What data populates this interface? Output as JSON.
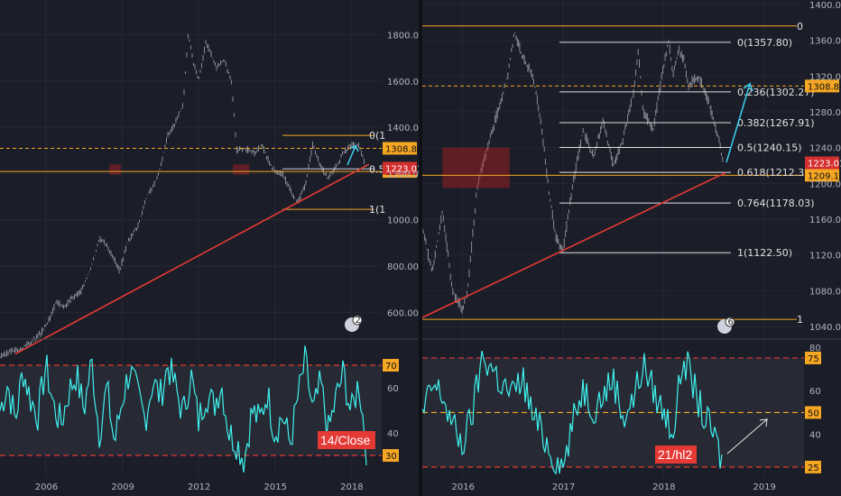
{
  "colors": {
    "background": "#1b1e28",
    "candle": "#8a8d96",
    "trendline": "#e53935",
    "orange": "#f5a623",
    "rsi_line": "#3ff0ee",
    "rsi_band": "#2a2d37",
    "rsi_dashed": "#e53935",
    "label_red": "#e53935",
    "arrow_cyan": "#3ad0f0"
  },
  "chart_data": [
    {
      "type": "line",
      "title": "",
      "subtitle": "price panel (weekly candles)",
      "price_min": 500,
      "price_max": 1950,
      "x_ticks": [
        "2006",
        "2009",
        "2012",
        "2015",
        "2018"
      ],
      "x_tick_years": [
        2006,
        2009,
        2012,
        2015,
        2018
      ],
      "x_range": [
        2004.2,
        2019.2
      ],
      "y_ticks": [
        "600.00",
        "800.00",
        "1000.00",
        "1200.00",
        "1400.00",
        "1600.00",
        "1800.00"
      ],
      "y_tick_values": [
        600,
        800,
        1000,
        1200,
        1400,
        1600,
        1800
      ],
      "price_series": {
        "x": [
          2004.2,
          2004.6,
          2005.0,
          2005.4,
          2005.8,
          2006.2,
          2006.4,
          2006.7,
          2007.0,
          2007.4,
          2007.8,
          2008.1,
          2008.3,
          2008.6,
          2008.9,
          2009.2,
          2009.6,
          2010.0,
          2010.4,
          2010.8,
          2011.1,
          2011.4,
          2011.6,
          2011.8,
          2012.0,
          2012.3,
          2012.7,
          2013.0,
          2013.3,
          2013.5,
          2013.8,
          2014.2,
          2014.5,
          2014.9,
          2015.3,
          2015.6,
          2015.9,
          2016.2,
          2016.5,
          2016.8,
          2017.1,
          2017.4,
          2017.7,
          2018.0,
          2018.3,
          2018.6
        ],
        "y": [
          405,
          430,
          440,
          470,
          510,
          580,
          650,
          620,
          660,
          690,
          800,
          920,
          900,
          850,
          780,
          900,
          970,
          1110,
          1180,
          1370,
          1420,
          1500,
          1800,
          1680,
          1600,
          1770,
          1660,
          1690,
          1600,
          1300,
          1310,
          1290,
          1320,
          1220,
          1200,
          1130,
          1075,
          1150,
          1330,
          1230,
          1180,
          1230,
          1290,
          1320,
          1320,
          1223
        ]
      },
      "current_price_label": "1223.01",
      "horizontal_levels": [
        {
          "label": "1308.84",
          "value": 1308.84,
          "style": "dashed"
        },
        {
          "label": "1209.12",
          "value": 1209.12,
          "style": "solid"
        }
      ],
      "fib_labels": [
        "0(1",
        "0.5",
        "1(1"
      ],
      "fib_values": [
        1365,
        1220,
        1045
      ],
      "trendline": {
        "x1": 2004.8,
        "y1": 420,
        "x2": 2018.7,
        "y2": 1240
      },
      "events_badge": "2",
      "rsi": {
        "ylim": [
          20,
          80
        ],
        "levels": [
          {
            "label": "70",
            "value": 70
          },
          {
            "label": "30",
            "value": 30
          }
        ],
        "y_ticks": [
          "60",
          "40"
        ],
        "y_tick_values": [
          60,
          40
        ],
        "annotation": "14/Close",
        "series": {
          "x": [
            2004.2,
            2004.5,
            2004.8,
            2005.1,
            2005.4,
            2005.7,
            2006.0,
            2006.3,
            2006.6,
            2006.9,
            2007.2,
            2007.5,
            2007.8,
            2008.1,
            2008.4,
            2008.7,
            2009.0,
            2009.3,
            2009.6,
            2009.9,
            2010.2,
            2010.5,
            2010.8,
            2011.1,
            2011.4,
            2011.7,
            2012.0,
            2012.3,
            2012.6,
            2012.9,
            2013.2,
            2013.5,
            2013.8,
            2014.1,
            2014.4,
            2014.7,
            2015.0,
            2015.3,
            2015.6,
            2015.9,
            2016.2,
            2016.5,
            2016.8,
            2017.1,
            2017.4,
            2017.7,
            2018.0,
            2018.3,
            2018.6
          ],
          "y": [
            50,
            62,
            45,
            68,
            55,
            48,
            70,
            52,
            44,
            58,
            66,
            50,
            72,
            40,
            60,
            35,
            55,
            68,
            57,
            46,
            63,
            56,
            70,
            60,
            48,
            66,
            45,
            58,
            52,
            62,
            40,
            36,
            28,
            50,
            45,
            58,
            40,
            48,
            35,
            55,
            72,
            48,
            62,
            40,
            55,
            67,
            48,
            63,
            33
          ]
        }
      }
    },
    {
      "type": "line",
      "title": "",
      "subtitle": "price panel (daily candles)",
      "price_min": 1030,
      "price_max": 1405,
      "x_ticks": [
        "2016",
        "2017",
        "2018",
        "2019"
      ],
      "x_tick_years": [
        2016,
        2017,
        2018,
        2019
      ],
      "x_range": [
        2015.6,
        2019.4
      ],
      "y_ticks": [
        "1040.00",
        "1080.00",
        "1120.00",
        "1160.00",
        "1200.00",
        "1240.00",
        "1280.00",
        "1320.00",
        "1360.00",
        "1400.00"
      ],
      "y_tick_values": [
        1040,
        1080,
        1120,
        1160,
        1200,
        1240,
        1280,
        1320,
        1360,
        1400
      ],
      "price_series": {
        "x": [
          2015.6,
          2015.7,
          2015.8,
          2015.9,
          2016.0,
          2016.05,
          2016.15,
          2016.25,
          2016.35,
          2016.45,
          2016.52,
          2016.6,
          2016.7,
          2016.78,
          2016.86,
          2016.93,
          2017.0,
          2017.1,
          2017.2,
          2017.3,
          2017.4,
          2017.5,
          2017.6,
          2017.7,
          2017.75,
          2017.8,
          2017.9,
          2018.0,
          2018.05,
          2018.1,
          2018.15,
          2018.2,
          2018.25,
          2018.35,
          2018.45,
          2018.55,
          2018.6
        ],
        "y": [
          1150,
          1100,
          1170,
          1080,
          1060,
          1080,
          1200,
          1240,
          1280,
          1320,
          1370,
          1340,
          1320,
          1270,
          1190,
          1140,
          1125,
          1200,
          1260,
          1230,
          1270,
          1220,
          1250,
          1300,
          1350,
          1280,
          1260,
          1330,
          1360,
          1320,
          1350,
          1340,
          1310,
          1320,
          1290,
          1250,
          1220
        ]
      },
      "current_price_label": "1223.01",
      "horizontal_levels": [
        {
          "label": "1308.84",
          "value": 1308.84,
          "style": "dashed"
        },
        {
          "label": "1209.12",
          "value": 1209.12,
          "style": "solid"
        }
      ],
      "fib_labels": [
        "0(1357.80)",
        "0.236(1302.27)",
        "0.382(1267.91)",
        "0.5(1240.15)",
        "0.618(1212.38)",
        "0.764(1178.03)",
        "1(1122.50)"
      ],
      "fib_values": [
        1357.8,
        1302.27,
        1267.91,
        1240.15,
        1212.38,
        1178.03,
        1122.5
      ],
      "orange_lines": [
        1376,
        1048
      ],
      "orange_marks": [
        "0",
        "1"
      ],
      "trendline": {
        "x1": 2015.6,
        "y1": 1050,
        "x2": 2018.62,
        "y2": 1212
      },
      "events_badge": "6",
      "rsi": {
        "ylim": [
          20,
          82
        ],
        "levels": [
          {
            "label": "75",
            "value": 75
          },
          {
            "label": "50",
            "value": 50
          },
          {
            "label": "25",
            "value": 25
          }
        ],
        "y_ticks": [
          "80",
          "60",
          "40"
        ],
        "y_tick_values": [
          80,
          60,
          40
        ],
        "annotation": "21/hl2",
        "series": {
          "x": [
            2015.6,
            2015.7,
            2015.8,
            2015.9,
            2016.0,
            2016.1,
            2016.2,
            2016.3,
            2016.4,
            2016.5,
            2016.6,
            2016.7,
            2016.8,
            2016.9,
            2017.0,
            2017.1,
            2017.2,
            2017.3,
            2017.4,
            2017.5,
            2017.6,
            2017.7,
            2017.8,
            2017.9,
            2018.0,
            2018.1,
            2018.2,
            2018.3,
            2018.4,
            2018.5,
            2018.6
          ],
          "y": [
            48,
            62,
            58,
            44,
            35,
            50,
            76,
            70,
            62,
            58,
            66,
            48,
            40,
            30,
            25,
            45,
            62,
            52,
            58,
            66,
            48,
            56,
            72,
            60,
            50,
            42,
            76,
            62,
            48,
            40,
            25
          ]
        }
      }
    }
  ]
}
